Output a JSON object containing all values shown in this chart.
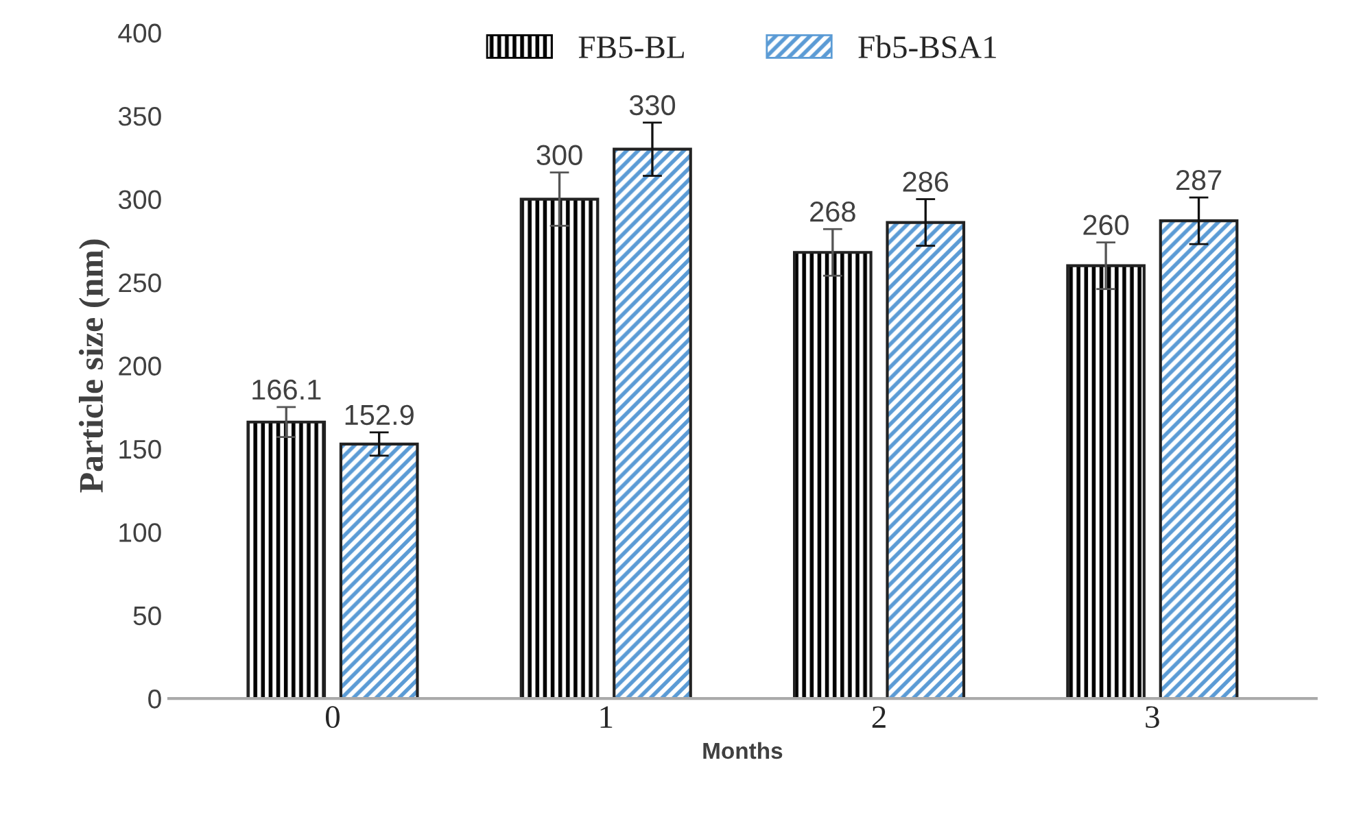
{
  "chart_data": {
    "type": "bar",
    "xlabel": "Months",
    "ylabel": "Particle size (nm)",
    "categories": [
      "0",
      "1",
      "2",
      "3"
    ],
    "series": [
      {
        "name": "FB5-BL",
        "color": "#000000",
        "values": [
          166.1,
          300,
          268,
          260
        ],
        "errors": [
          9,
          16,
          14,
          14
        ]
      },
      {
        "name": "Fb5-BSA1",
        "color": "#5b9bd5",
        "values": [
          152.9,
          330,
          286,
          287
        ],
        "errors": [
          7,
          16,
          14,
          14
        ]
      }
    ],
    "ylim": [
      0,
      400
    ],
    "yticks": [
      0,
      50,
      100,
      150,
      200,
      250,
      300,
      350,
      400
    ],
    "data_labels": true,
    "grid": false,
    "legend": "top"
  }
}
